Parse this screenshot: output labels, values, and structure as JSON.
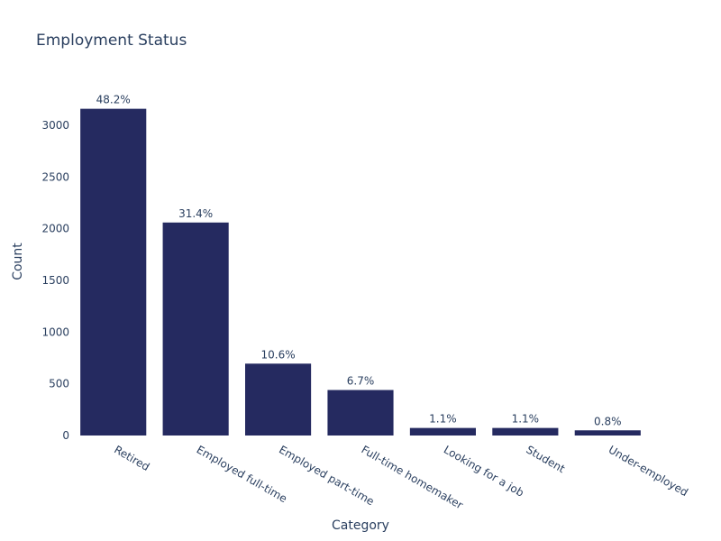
{
  "chart_data": {
    "type": "bar",
    "title": "Employment Status",
    "xlabel": "Category",
    "ylabel": "Count",
    "categories": [
      "Retired",
      "Employed full-time",
      "Employed part-time",
      "Full-time homemaker",
      "Looking for a job",
      "Student",
      "Under-employed"
    ],
    "values": [
      3160,
      2060,
      695,
      440,
      73,
      73,
      50
    ],
    "data_labels": [
      "48.2%",
      "31.4%",
      "10.6%",
      "6.7%",
      "1.1%",
      "1.1%",
      "0.8%"
    ],
    "ylim": [
      0,
      3340
    ],
    "yticks": [
      0,
      500,
      1000,
      1500,
      2000,
      2500,
      3000
    ],
    "bar_color": "#252a60",
    "grid": false,
    "legend": "none"
  }
}
